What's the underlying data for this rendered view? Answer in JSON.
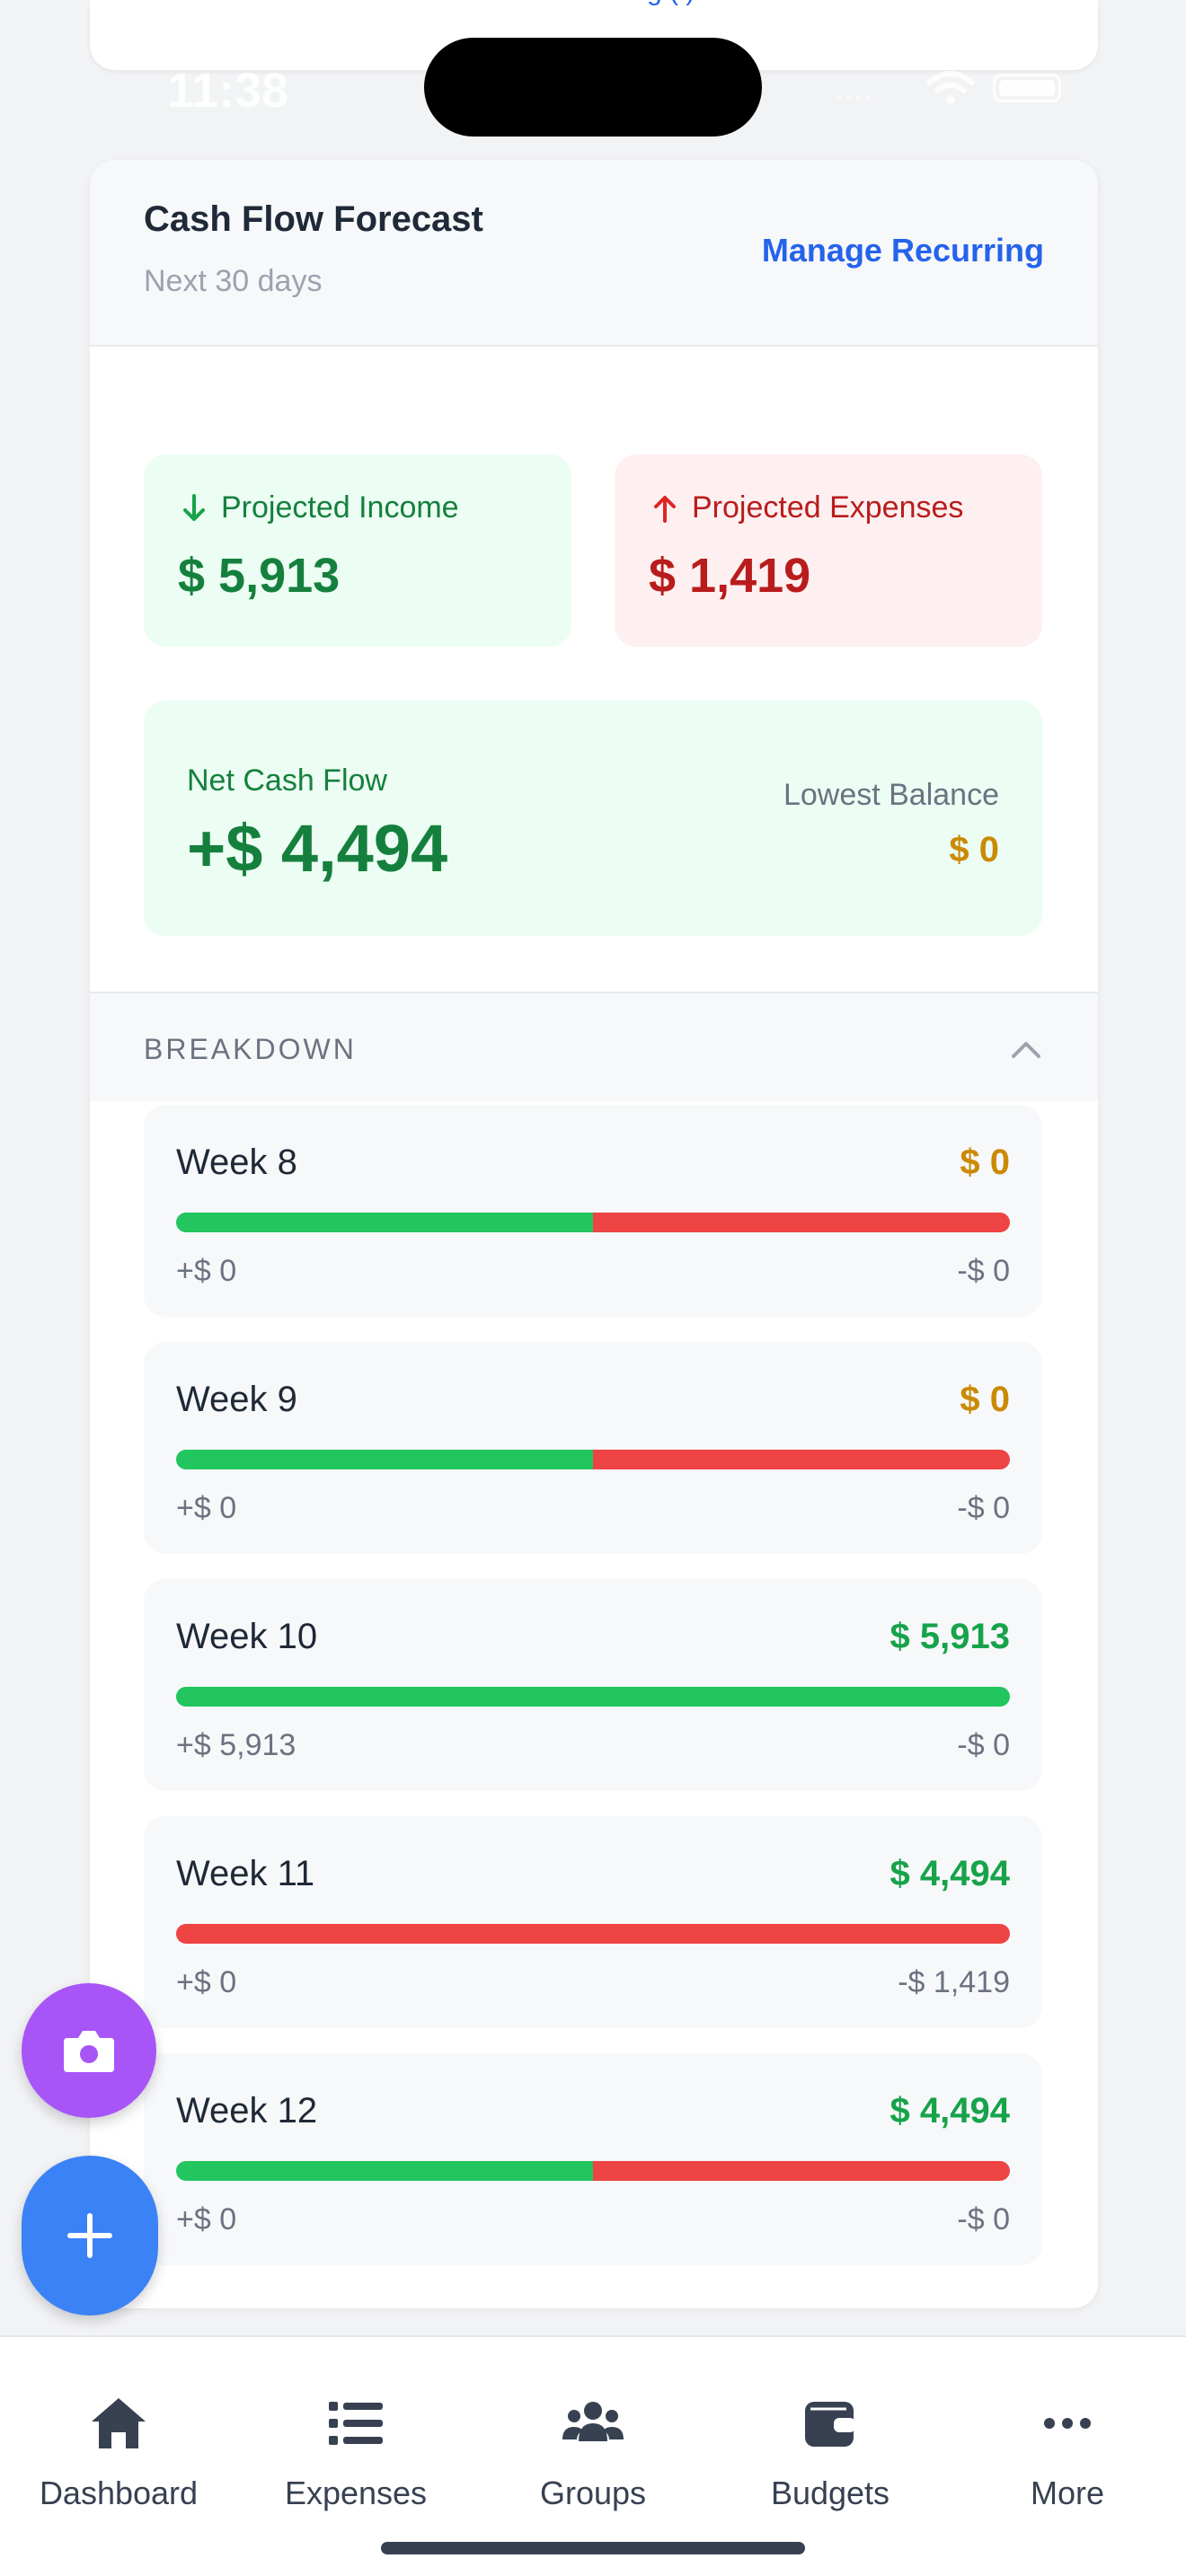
{
  "status_bar": {
    "time": "11:38"
  },
  "top_card": {
    "link_text": "g   ( )"
  },
  "forecast": {
    "title": "Cash Flow Forecast",
    "subtitle": "Next 30 days",
    "manage_label": "Manage Recurring",
    "income": {
      "label": "Projected Income",
      "value": "$ 5,913"
    },
    "expenses": {
      "label": "Projected Expenses",
      "value": "$ 1,419"
    },
    "net": {
      "label": "Net Cash Flow",
      "value": "+$ 4,494"
    },
    "lowest": {
      "label": "Lowest Balance",
      "value": "$ 0"
    }
  },
  "breakdown": {
    "label": "BREAKDOWN",
    "weeks": [
      {
        "name": "Week 8",
        "total": "$ 0",
        "total_color": "#ca8a04",
        "income": "+$ 0",
        "expense": "-$ 0",
        "income_share": 0.5
      },
      {
        "name": "Week 9",
        "total": "$ 0",
        "total_color": "#ca8a04",
        "income": "+$ 0",
        "expense": "-$ 0",
        "income_share": 0.5
      },
      {
        "name": "Week 10",
        "total": "$ 5,913",
        "total_color": "#16a34a",
        "income": "+$ 5,913",
        "expense": "-$ 0",
        "income_share": 1.0
      },
      {
        "name": "Week 11",
        "total": "$ 4,494",
        "total_color": "#16a34a",
        "income": "+$ 0",
        "expense": "-$ 1,419",
        "income_share": 0.0
      },
      {
        "name": "Week 12",
        "total": "$ 4,494",
        "total_color": "#16a34a",
        "income": "+$ 0",
        "expense": "-$ 0",
        "income_share": 0.5
      }
    ]
  },
  "fabs": {
    "camera_icon": "camera-icon",
    "add_icon": "plus-icon"
  },
  "tabbar": {
    "tabs": [
      {
        "label": "Dashboard",
        "icon": "home-icon"
      },
      {
        "label": "Expenses",
        "icon": "list-icon"
      },
      {
        "label": "Groups",
        "icon": "users-icon"
      },
      {
        "label": "Budgets",
        "icon": "wallet-icon"
      },
      {
        "label": "More",
        "icon": "more-icon"
      }
    ]
  },
  "colors": {
    "income": "#22c55e",
    "expense": "#ef4444",
    "accent": "#2563eb",
    "warning": "#ca8a04"
  }
}
